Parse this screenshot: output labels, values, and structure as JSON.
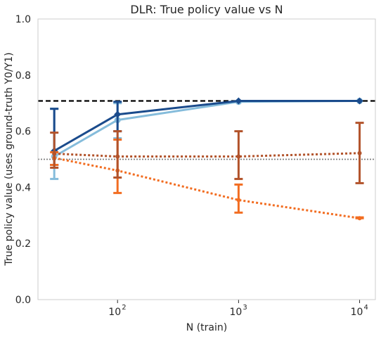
{
  "chart_data": {
    "type": "line",
    "title": "DLR: True policy value vs N",
    "xlabel": "N (train)",
    "ylabel": "True policy value (uses ground-truth Y0/Y1)",
    "xscale": "log",
    "xlim": [
      22,
      13500
    ],
    "ylim": [
      0,
      1
    ],
    "yticks": [
      0.0,
      0.2,
      0.4,
      0.6,
      0.8,
      1.0
    ],
    "ytick_labels": [
      "0.0",
      "0.2",
      "0.4",
      "0.6",
      "0.8",
      "1.0"
    ],
    "xticks": [
      100,
      1000,
      10000
    ],
    "xtick_labels": [
      {
        "base": "10",
        "exp": "2"
      },
      {
        "base": "10",
        "exp": "3"
      },
      {
        "base": "10",
        "exp": "4"
      }
    ],
    "grid": false,
    "reference_lines": [
      {
        "y": 0.708,
        "style": "dashed",
        "color": "#000000"
      },
      {
        "y": 0.5,
        "style": "dotted",
        "color": "#808080"
      }
    ],
    "x": [
      30,
      100,
      1000,
      10000
    ],
    "series": [
      {
        "color": "#85bcdb",
        "style": "solid",
        "marker": "circle",
        "values": [
          0.51,
          0.64,
          0.705,
          0.708
        ],
        "err_low": [
          0.43,
          0.575,
          0.705,
          0.708
        ],
        "err_high": [
          0.68,
          0.7,
          0.705,
          0.708
        ]
      },
      {
        "color": "#1a4b8c",
        "style": "solid",
        "marker": "diamond",
        "values": [
          0.53,
          0.66,
          0.708,
          0.708
        ],
        "err_low": [
          0.48,
          0.6,
          0.708,
          0.708
        ],
        "err_high": [
          0.68,
          0.705,
          0.708,
          0.708
        ]
      },
      {
        "color": "#f26d21",
        "style": "dotted",
        "marker": "circle",
        "values": [
          0.505,
          0.46,
          0.355,
          0.29
        ],
        "err_low": [
          0.48,
          0.38,
          0.31,
          0.29
        ],
        "err_high": [
          0.525,
          0.57,
          0.41,
          0.293
        ]
      },
      {
        "color": "#b2532b",
        "style": "dotted",
        "marker": "circle",
        "values": [
          0.52,
          0.51,
          0.51,
          0.522
        ],
        "err_low": [
          0.47,
          0.435,
          0.43,
          0.415
        ],
        "err_high": [
          0.595,
          0.6,
          0.6,
          0.63
        ]
      }
    ]
  }
}
